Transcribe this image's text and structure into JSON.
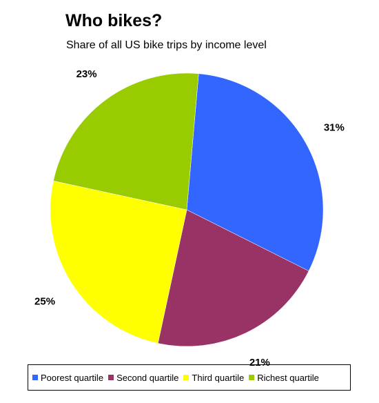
{
  "chart_data": {
    "type": "pie",
    "title": "Who bikes?",
    "subtitle": "Share of all US bike trips by income level",
    "slices": [
      {
        "label": "Poorest quartile",
        "value": 31,
        "value_label": "31%",
        "color": "#3366ff"
      },
      {
        "label": "Second quartile",
        "value": 21,
        "value_label": "21%",
        "color": "#993366"
      },
      {
        "label": "Third quartile",
        "value": 25,
        "value_label": "25%",
        "color": "#ffff00"
      },
      {
        "label": "Richest quartile",
        "value": 23,
        "value_label": "23%",
        "color": "#99cc00"
      }
    ],
    "start_angle_deg": 5,
    "direction": "clockwise",
    "legend_position": "bottom"
  }
}
